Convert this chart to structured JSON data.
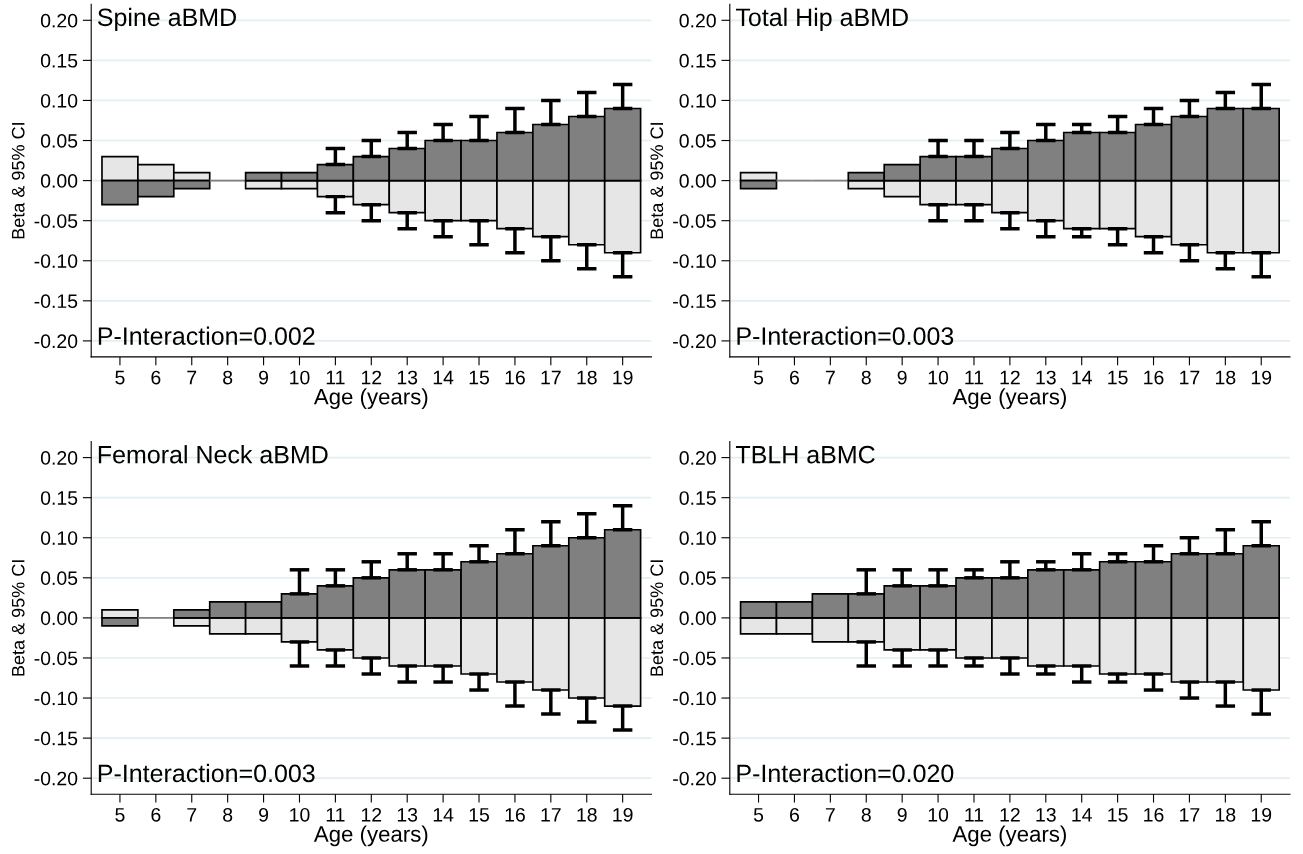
{
  "chart_data": [
    {
      "type": "bar",
      "title": "Spine aBMD",
      "xlabel": "Age (years)",
      "ylabel": "Beta & 95% CI",
      "annotations": [
        "P-Interaction=0.002"
      ],
      "categories": [
        "5",
        "6",
        "7",
        "8",
        "9",
        "10",
        "11",
        "12",
        "13",
        "14",
        "15",
        "16",
        "17",
        "18",
        "19"
      ],
      "series": [
        {
          "color": "#e6e6e6",
          "values": [
            0.03,
            0.02,
            0.01,
            0,
            -0.01,
            -0.01,
            -0.02,
            -0.03,
            -0.04,
            -0.05,
            -0.05,
            -0.06,
            -0.07,
            -0.08,
            -0.09
          ],
          "errors": [
            null,
            null,
            null,
            null,
            null,
            null,
            [
              -0.04,
              -0.02
            ],
            [
              -0.05,
              -0.03
            ],
            [
              -0.06,
              -0.04
            ],
            [
              -0.07,
              -0.05
            ],
            [
              -0.08,
              -0.05
            ],
            [
              -0.09,
              -0.06
            ],
            [
              -0.1,
              -0.07
            ],
            [
              -0.11,
              -0.08
            ],
            [
              -0.12,
              -0.09
            ]
          ]
        },
        {
          "color": "#808080",
          "values": [
            -0.03,
            -0.02,
            -0.01,
            0,
            0.01,
            0.01,
            0.02,
            0.03,
            0.04,
            0.05,
            0.05,
            0.06,
            0.07,
            0.08,
            0.09
          ],
          "errors": [
            null,
            null,
            null,
            null,
            null,
            null,
            [
              0.02,
              0.04
            ],
            [
              0.03,
              0.05
            ],
            [
              0.04,
              0.06
            ],
            [
              0.05,
              0.07
            ],
            [
              0.05,
              0.08
            ],
            [
              0.06,
              0.09
            ],
            [
              0.07,
              0.1
            ],
            [
              0.08,
              0.11
            ],
            [
              0.09,
              0.12
            ]
          ]
        }
      ],
      "ylim": [
        -0.22,
        0.22
      ],
      "yticks": [
        {
          "value": -0.2,
          "label": "-0.20"
        },
        {
          "value": -0.15,
          "label": "-0.15"
        },
        {
          "value": -0.1,
          "label": "-0.10"
        },
        {
          "value": -0.05,
          "label": "-0.05"
        },
        {
          "value": 0,
          "label": "0.00"
        },
        {
          "value": 0.05,
          "label": "0.05"
        },
        {
          "value": 0.1,
          "label": "0.10"
        },
        {
          "value": 0.15,
          "label": "0.15"
        },
        {
          "value": 0.2,
          "label": "0.20"
        }
      ],
      "grid": "y",
      "stacked": true
    },
    {
      "type": "bar",
      "title": "Total Hip aBMD",
      "xlabel": "Age (years)",
      "ylabel": "Beta & 95% CI",
      "annotations": [
        "P-Interaction=0.003"
      ],
      "categories": [
        "5",
        "6",
        "7",
        "8",
        "9",
        "10",
        "11",
        "12",
        "13",
        "14",
        "15",
        "16",
        "17",
        "18",
        "19"
      ],
      "series": [
        {
          "color": "#e6e6e6",
          "values": [
            0.01,
            0,
            0,
            -0.01,
            -0.02,
            -0.03,
            -0.03,
            -0.04,
            -0.05,
            -0.06,
            -0.06,
            -0.07,
            -0.08,
            -0.09,
            -0.09
          ],
          "errors": [
            null,
            null,
            null,
            null,
            null,
            [
              -0.05,
              -0.03
            ],
            [
              -0.05,
              -0.03
            ],
            [
              -0.06,
              -0.04
            ],
            [
              -0.07,
              -0.05
            ],
            [
              -0.07,
              -0.06
            ],
            [
              -0.08,
              -0.06
            ],
            [
              -0.09,
              -0.07
            ],
            [
              -0.1,
              -0.08
            ],
            [
              -0.11,
              -0.09
            ],
            [
              -0.12,
              -0.09
            ]
          ]
        },
        {
          "color": "#808080",
          "values": [
            -0.01,
            0,
            0,
            0.01,
            0.02,
            0.03,
            0.03,
            0.04,
            0.05,
            0.06,
            0.06,
            0.07,
            0.08,
            0.09,
            0.09
          ],
          "errors": [
            null,
            null,
            null,
            null,
            null,
            [
              0.03,
              0.05
            ],
            [
              0.03,
              0.05
            ],
            [
              0.04,
              0.06
            ],
            [
              0.05,
              0.07
            ],
            [
              0.06,
              0.07
            ],
            [
              0.06,
              0.08
            ],
            [
              0.07,
              0.09
            ],
            [
              0.08,
              0.1
            ],
            [
              0.09,
              0.11
            ],
            [
              0.09,
              0.12
            ]
          ]
        }
      ],
      "ylim": [
        -0.22,
        0.22
      ],
      "yticks": [
        {
          "value": -0.2,
          "label": "-0.20"
        },
        {
          "value": -0.15,
          "label": "-0.15"
        },
        {
          "value": -0.1,
          "label": "-0.10"
        },
        {
          "value": -0.05,
          "label": "-0.05"
        },
        {
          "value": 0,
          "label": "0.00"
        },
        {
          "value": 0.05,
          "label": "0.05"
        },
        {
          "value": 0.1,
          "label": "0.10"
        },
        {
          "value": 0.15,
          "label": "0.15"
        },
        {
          "value": 0.2,
          "label": "0.20"
        }
      ],
      "grid": "y",
      "stacked": true
    },
    {
      "type": "bar",
      "title": "Femoral Neck aBMD",
      "xlabel": "Age (years)",
      "ylabel": "Beta & 95% CI",
      "annotations": [
        "P-Interaction=0.003"
      ],
      "categories": [
        "5",
        "6",
        "7",
        "8",
        "9",
        "10",
        "11",
        "12",
        "13",
        "14",
        "15",
        "16",
        "17",
        "18",
        "19"
      ],
      "series": [
        {
          "color": "#e6e6e6",
          "values": [
            0.01,
            0,
            -0.01,
            -0.02,
            -0.02,
            -0.03,
            -0.04,
            -0.05,
            -0.06,
            -0.06,
            -0.07,
            -0.08,
            -0.09,
            -0.1,
            -0.11
          ],
          "errors": [
            null,
            null,
            null,
            null,
            null,
            [
              -0.06,
              -0.03
            ],
            [
              -0.06,
              -0.04
            ],
            [
              -0.07,
              -0.05
            ],
            [
              -0.08,
              -0.06
            ],
            [
              -0.08,
              -0.06
            ],
            [
              -0.09,
              -0.07
            ],
            [
              -0.11,
              -0.08
            ],
            [
              -0.12,
              -0.09
            ],
            [
              -0.13,
              -0.1
            ],
            [
              -0.14,
              -0.11
            ]
          ]
        },
        {
          "color": "#808080",
          "values": [
            -0.01,
            0,
            0.01,
            0.02,
            0.02,
            0.03,
            0.04,
            0.05,
            0.06,
            0.06,
            0.07,
            0.08,
            0.09,
            0.1,
            0.11
          ],
          "errors": [
            null,
            null,
            null,
            null,
            null,
            [
              0.03,
              0.06
            ],
            [
              0.04,
              0.06
            ],
            [
              0.05,
              0.07
            ],
            [
              0.06,
              0.08
            ],
            [
              0.06,
              0.08
            ],
            [
              0.07,
              0.09
            ],
            [
              0.08,
              0.11
            ],
            [
              0.09,
              0.12
            ],
            [
              0.1,
              0.13
            ],
            [
              0.11,
              0.14
            ]
          ]
        }
      ],
      "ylim": [
        -0.22,
        0.22
      ],
      "yticks": [
        {
          "value": -0.2,
          "label": "-0.20"
        },
        {
          "value": -0.15,
          "label": "-0.15"
        },
        {
          "value": -0.1,
          "label": "-0.10"
        },
        {
          "value": -0.05,
          "label": "-0.05"
        },
        {
          "value": 0,
          "label": "0.00"
        },
        {
          "value": 0.05,
          "label": "0.05"
        },
        {
          "value": 0.1,
          "label": "0.10"
        },
        {
          "value": 0.15,
          "label": "0.15"
        },
        {
          "value": 0.2,
          "label": "0.20"
        }
      ],
      "grid": "y",
      "stacked": true
    },
    {
      "type": "bar",
      "title": "TBLH aBMC",
      "xlabel": "Age (years)",
      "ylabel": "Beta & 95% CI",
      "annotations": [
        "P-Interaction=0.020"
      ],
      "categories": [
        "5",
        "6",
        "7",
        "8",
        "9",
        "10",
        "11",
        "12",
        "13",
        "14",
        "15",
        "16",
        "17",
        "18",
        "19"
      ],
      "series": [
        {
          "color": "#e6e6e6",
          "values": [
            -0.02,
            -0.02,
            -0.03,
            -0.03,
            -0.04,
            -0.04,
            -0.05,
            -0.05,
            -0.06,
            -0.06,
            -0.07,
            -0.07,
            -0.08,
            -0.08,
            -0.09
          ],
          "errors": [
            null,
            null,
            null,
            [
              -0.06,
              -0.03
            ],
            [
              -0.06,
              -0.04
            ],
            [
              -0.06,
              -0.04
            ],
            [
              -0.06,
              -0.05
            ],
            [
              -0.07,
              -0.05
            ],
            [
              -0.07,
              -0.06
            ],
            [
              -0.08,
              -0.06
            ],
            [
              -0.08,
              -0.07
            ],
            [
              -0.09,
              -0.07
            ],
            [
              -0.1,
              -0.08
            ],
            [
              -0.11,
              -0.08
            ],
            [
              -0.12,
              -0.09
            ]
          ]
        },
        {
          "color": "#808080",
          "values": [
            0.02,
            0.02,
            0.03,
            0.03,
            0.04,
            0.04,
            0.05,
            0.05,
            0.06,
            0.06,
            0.07,
            0.07,
            0.08,
            0.08,
            0.09
          ],
          "errors": [
            null,
            null,
            null,
            [
              0.03,
              0.06
            ],
            [
              0.04,
              0.06
            ],
            [
              0.04,
              0.06
            ],
            [
              0.05,
              0.06
            ],
            [
              0.05,
              0.07
            ],
            [
              0.06,
              0.07
            ],
            [
              0.06,
              0.08
            ],
            [
              0.07,
              0.08
            ],
            [
              0.07,
              0.09
            ],
            [
              0.08,
              0.1
            ],
            [
              0.08,
              0.11
            ],
            [
              0.09,
              0.12
            ]
          ]
        }
      ],
      "ylim": [
        -0.22,
        0.22
      ],
      "yticks": [
        {
          "value": -0.2,
          "label": "-0.20"
        },
        {
          "value": -0.15,
          "label": "-0.15"
        },
        {
          "value": -0.1,
          "label": "-0.10"
        },
        {
          "value": -0.05,
          "label": "-0.05"
        },
        {
          "value": 0,
          "label": "0.00"
        },
        {
          "value": 0.05,
          "label": "0.05"
        },
        {
          "value": 0.1,
          "label": "0.10"
        },
        {
          "value": 0.15,
          "label": "0.15"
        },
        {
          "value": 0.2,
          "label": "0.20"
        }
      ],
      "grid": "y",
      "stacked": true
    }
  ]
}
